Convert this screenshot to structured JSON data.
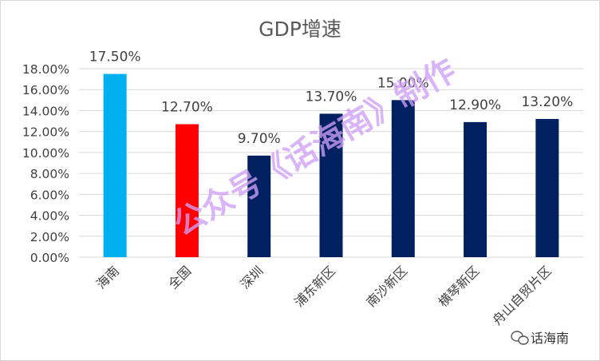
{
  "chart_data": {
    "type": "bar",
    "title": "GDP增速",
    "xlabel": "",
    "ylabel": "",
    "categories": [
      "海南",
      "全国",
      "深圳",
      "浦东新区",
      "南沙新区",
      "横琴新区",
      "舟山自贸片区"
    ],
    "values": [
      17.5,
      12.7,
      9.7,
      13.7,
      15.0,
      12.9,
      13.2
    ],
    "data_labels": [
      "17.50%",
      "12.70%",
      "9.70%",
      "13.70%",
      "15.00%",
      "12.90%",
      "13.20%"
    ],
    "colors": [
      "#00b0f0",
      "#ff0000",
      "#002060",
      "#002060",
      "#002060",
      "#002060",
      "#002060"
    ],
    "ylim": [
      0,
      18
    ],
    "yticks": [
      0,
      2,
      4,
      6,
      8,
      10,
      12,
      14,
      16,
      18
    ],
    "ytick_labels": [
      "0.00%",
      "2.00%",
      "4.00%",
      "6.00%",
      "8.00%",
      "10.00%",
      "12.00%",
      "14.00%",
      "16.00%",
      "18.00%"
    ],
    "grid": true,
    "legend": "none"
  },
  "watermark": "公众号《话海南》制作",
  "brand": {
    "icon": "wechat-icon",
    "text": "话海南"
  }
}
